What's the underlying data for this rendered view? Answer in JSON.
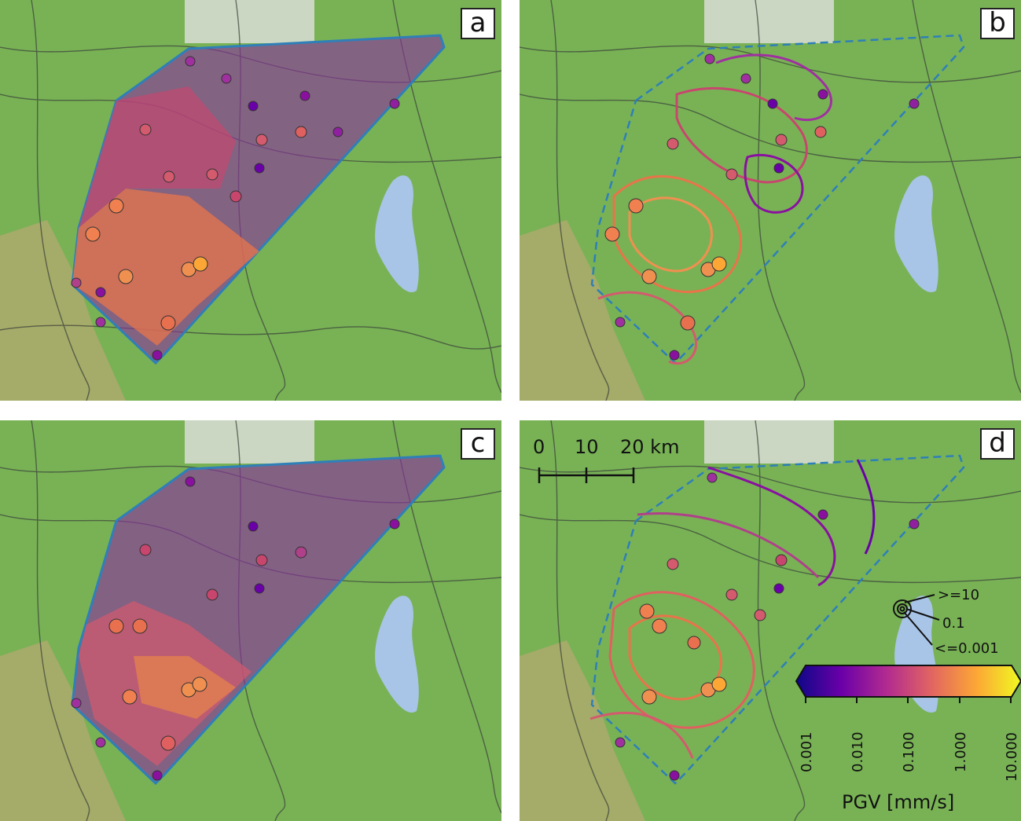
{
  "panels": [
    {
      "letter": "a",
      "style": "voronoi"
    },
    {
      "letter": "b",
      "style": "contour"
    },
    {
      "letter": "c",
      "style": "voronoi"
    },
    {
      "letter": "d",
      "style": "contour"
    }
  ],
  "scale_bar": {
    "labels": [
      "0",
      "10",
      "20 km"
    ]
  },
  "size_legend": {
    "labels": [
      ">=10",
      "0.1",
      "<=0.001"
    ]
  },
  "colorbar": {
    "label": "PGV [mm/s]",
    "ticks": [
      "0.001",
      "0.010",
      "0.100",
      "1.000",
      "10.000"
    ],
    "colors": [
      "#0d0887",
      "#6a00a8",
      "#b12a90",
      "#e16462",
      "#fca636",
      "#f0f921"
    ]
  },
  "map_colors": {
    "terrain": "#78b255",
    "lake": "#a8c4e6",
    "city": "#d9ddd6",
    "region_outline": "#2f7fb8"
  }
}
